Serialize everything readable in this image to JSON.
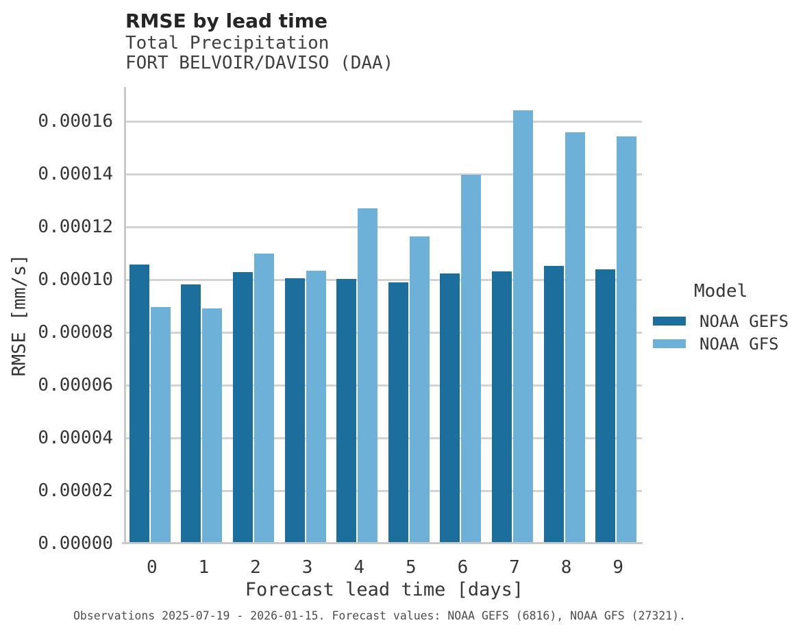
{
  "header": {
    "title": "RMSE by lead time",
    "subtitle_line1": "Total Precipitation",
    "subtitle_line2": "FORT BELVOIR/DAVISO (DAA)"
  },
  "chart_data": {
    "type": "bar",
    "title": "RMSE by lead time",
    "subtitle": [
      "Total Precipitation",
      "FORT BELVOIR/DAVISO (DAA)"
    ],
    "xlabel": "Forecast lead time [days]",
    "ylabel": "RMSE [mm/s]",
    "categories": [
      "0",
      "1",
      "2",
      "3",
      "4",
      "5",
      "6",
      "7",
      "8",
      "9"
    ],
    "series": [
      {
        "name": "NOAA GEFS",
        "color": "#1c6e9d",
        "values": [
          0.0001058,
          9.82e-05,
          0.0001028,
          0.0001005,
          0.0001003,
          9.9e-05,
          0.0001023,
          0.000103,
          0.0001052,
          0.000104
        ]
      },
      {
        "name": "NOAA GFS",
        "color": "#6db1d8",
        "values": [
          8.95e-05,
          8.9e-05,
          0.00011,
          0.0001033,
          0.0001271,
          0.0001163,
          0.0001398,
          0.0001641,
          0.0001558,
          0.0001544
        ]
      }
    ],
    "ylim": [
      0,
      0.000173
    ],
    "yticks": [
      {
        "value": 0.0,
        "label": "0.00000"
      },
      {
        "value": 2e-05,
        "label": "0.00002"
      },
      {
        "value": 4e-05,
        "label": "0.00004"
      },
      {
        "value": 6e-05,
        "label": "0.00006"
      },
      {
        "value": 8e-05,
        "label": "0.00008"
      },
      {
        "value": 0.0001,
        "label": "0.00010"
      },
      {
        "value": 0.00012,
        "label": "0.00012"
      },
      {
        "value": 0.00014,
        "label": "0.00014"
      },
      {
        "value": 0.00016,
        "label": "0.00016"
      }
    ],
    "grid": "horizontal",
    "legend_position": "right"
  },
  "legend": {
    "title": "Model",
    "items": [
      {
        "label": "NOAA GEFS",
        "color": "#1c6e9d"
      },
      {
        "label": "NOAA GFS",
        "color": "#6db1d8"
      }
    ]
  },
  "footer": {
    "caption": "Observations 2025-07-19 - 2026-01-15. Forecast values: NOAA GEFS (6816), NOAA GFS (27321)."
  },
  "colors": {
    "gefs_bar": "#1c6e9d",
    "gfs_bar": "#6db1d8",
    "gridline": "#d3d3d3",
    "spine": "#c9c9c9",
    "title_text": "#252525",
    "tick_text": "#363636",
    "caption_text": "#4d4d4d"
  }
}
